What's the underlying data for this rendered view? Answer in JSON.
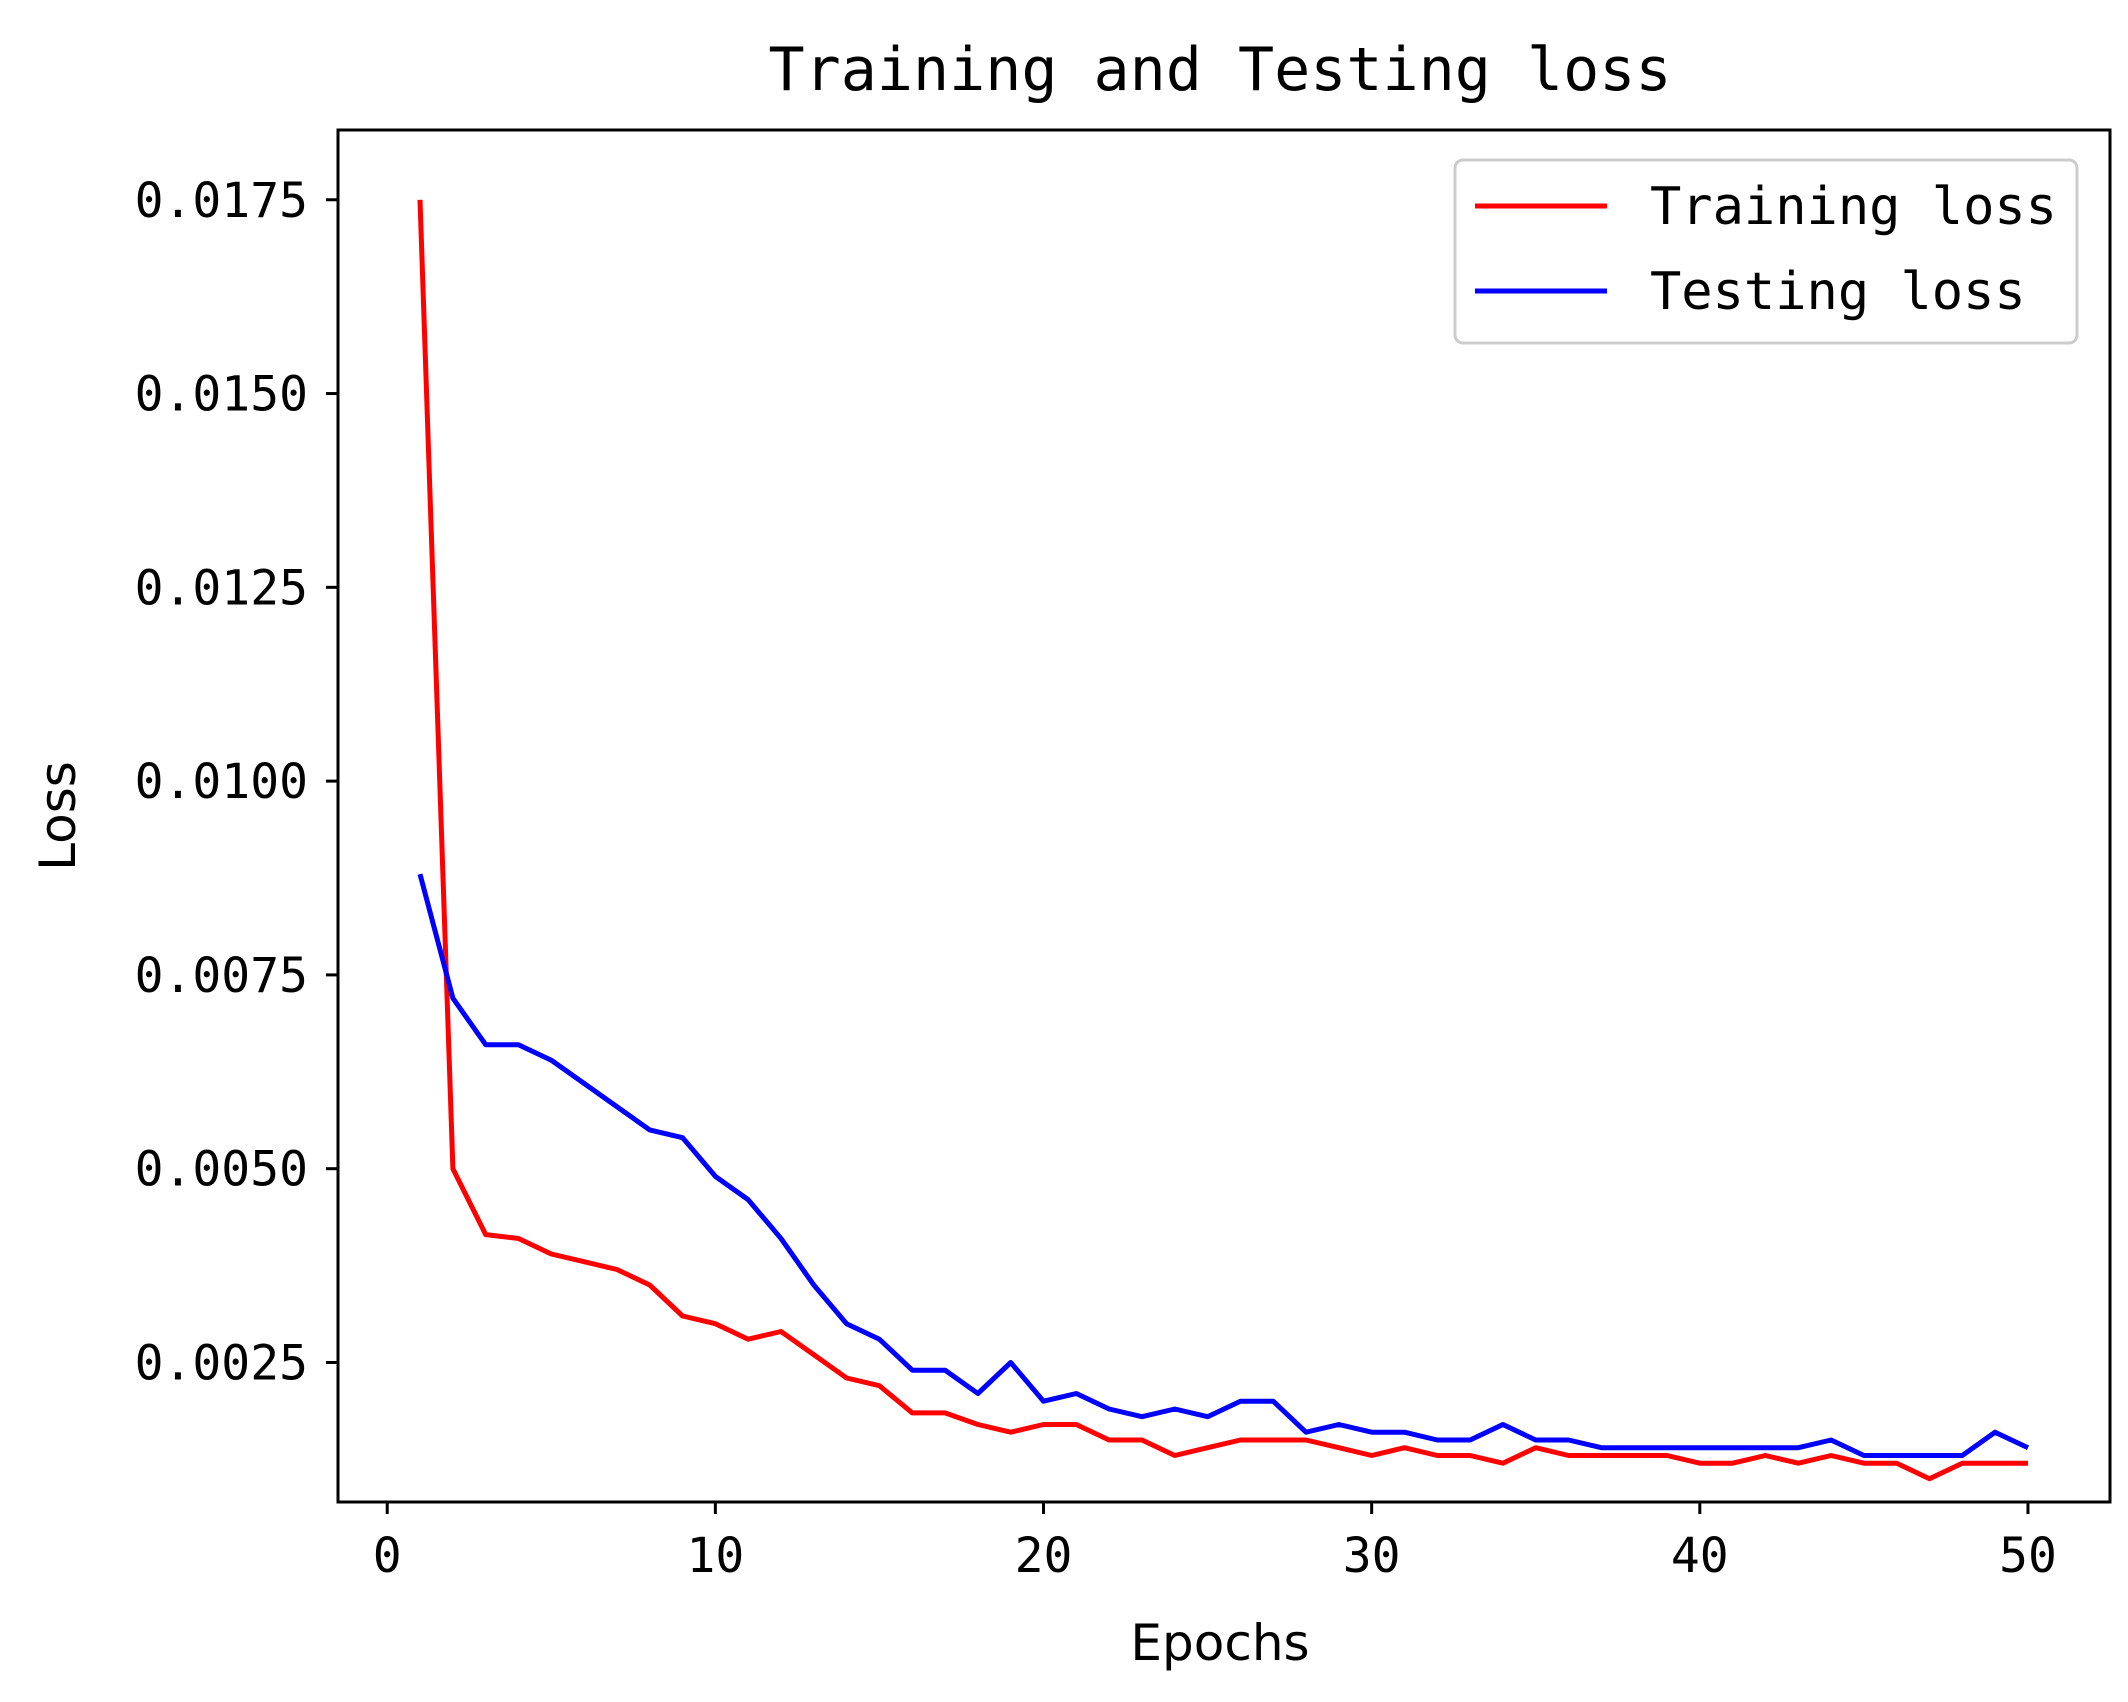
{
  "chart_data": {
    "type": "line",
    "title": "Training and Testing loss",
    "xlabel": "Epochs",
    "ylabel": "Loss",
    "xlim": [
      -1.5,
      52.5
    ],
    "ylim": [
      0.0007,
      0.0184
    ],
    "xticks": [
      0,
      10,
      20,
      30,
      40,
      50
    ],
    "xtick_labels": [
      "0",
      "10",
      "20",
      "30",
      "40",
      "50"
    ],
    "yticks": [
      0.0025,
      0.005,
      0.0075,
      0.01,
      0.0125,
      0.015,
      0.0175
    ],
    "ytick_labels": [
      "0.0025",
      "0.0050",
      "0.0075",
      "0.0100",
      "0.0125",
      "0.0150",
      "0.0175"
    ],
    "grid": false,
    "legend_position": "top-right",
    "x": [
      1,
      2,
      3,
      4,
      5,
      6,
      7,
      8,
      9,
      10,
      11,
      12,
      13,
      14,
      15,
      16,
      17,
      18,
      19,
      20,
      21,
      22,
      23,
      24,
      25,
      26,
      27,
      28,
      29,
      30,
      31,
      32,
      33,
      34,
      35,
      36,
      37,
      38,
      39,
      40,
      41,
      42,
      43,
      44,
      45,
      46,
      47,
      48,
      49,
      50
    ],
    "series": [
      {
        "name": "Training loss",
        "color": "#ff0000",
        "values": [
          0.0175,
          0.005,
          0.00415,
          0.0041,
          0.0039,
          0.0038,
          0.0037,
          0.0035,
          0.0031,
          0.003,
          0.0028,
          0.0029,
          0.0026,
          0.0023,
          0.0022,
          0.00185,
          0.00185,
          0.0017,
          0.0016,
          0.0017,
          0.0017,
          0.0015,
          0.0015,
          0.0013,
          0.0014,
          0.0015,
          0.0015,
          0.0015,
          0.0014,
          0.0013,
          0.0014,
          0.0013,
          0.0013,
          0.0012,
          0.0014,
          0.0013,
          0.0013,
          0.0013,
          0.0013,
          0.0012,
          0.0012,
          0.0013,
          0.0012,
          0.0013,
          0.0012,
          0.0012,
          0.001,
          0.0012,
          0.0012,
          0.0012
        ]
      },
      {
        "name": "Testing loss",
        "color": "#0000ff",
        "values": [
          0.0088,
          0.0072,
          0.0066,
          0.0066,
          0.0064,
          0.0061,
          0.0058,
          0.0055,
          0.0054,
          0.0049,
          0.0046,
          0.0041,
          0.0035,
          0.003,
          0.0028,
          0.0024,
          0.0024,
          0.0021,
          0.0025,
          0.002,
          0.0021,
          0.0019,
          0.0018,
          0.0019,
          0.0018,
          0.002,
          0.002,
          0.0016,
          0.0017,
          0.0016,
          0.0016,
          0.0015,
          0.0015,
          0.0017,
          0.0015,
          0.0015,
          0.0014,
          0.0014,
          0.0014,
          0.0014,
          0.0014,
          0.0014,
          0.0014,
          0.0015,
          0.0013,
          0.0013,
          0.0013,
          0.0013,
          0.0016,
          0.0014
        ]
      }
    ]
  }
}
